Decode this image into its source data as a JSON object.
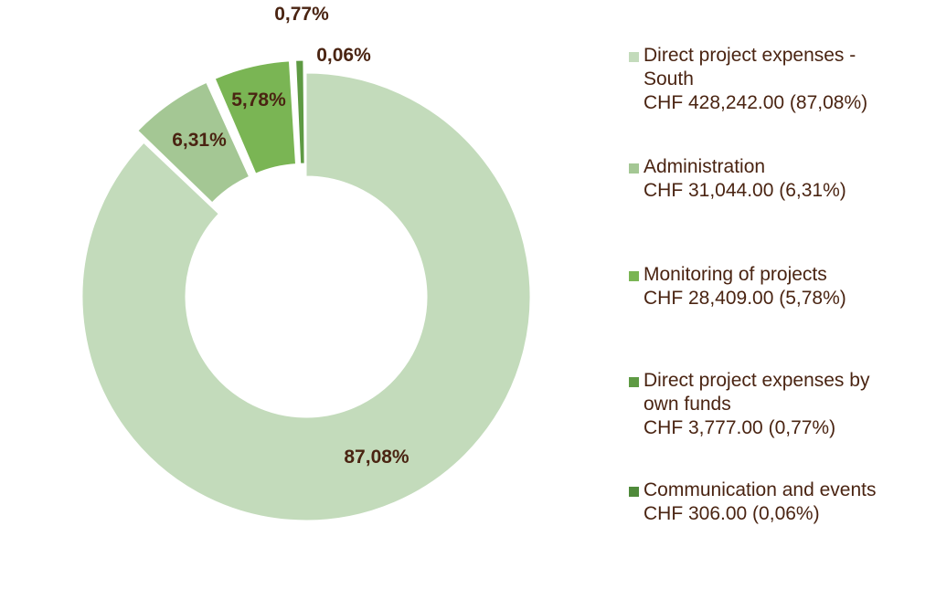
{
  "chart_data": {
    "type": "pie",
    "donut": true,
    "title": "",
    "legend_placement": "right",
    "categories": [
      "Direct project expenses - South",
      "Administration",
      "Monitoring of projects",
      "Direct project expenses by own funds",
      "Communication and events"
    ],
    "values": [
      428242.0,
      31044.0,
      28409.0,
      3777.0,
      306.0
    ],
    "percent_labels": [
      "87,08%",
      "6,31%",
      "5,78%",
      "0,77%",
      "0,06%"
    ],
    "legend_values": [
      "CHF 428,242.00 (87,08%)",
      "CHF 31,044.00 (6,31%)",
      "CHF 28,409.00 (5,78%)",
      "CHF 3,777.00 (0,77%)",
      "CHF 306.00 (0,06%)"
    ],
    "colors": [
      "#c3dbbb",
      "#a4c794",
      "#7ab554",
      "#5e9a43",
      "#4f8a3a"
    ],
    "exploded": [
      false,
      true,
      true,
      true,
      true
    ]
  }
}
